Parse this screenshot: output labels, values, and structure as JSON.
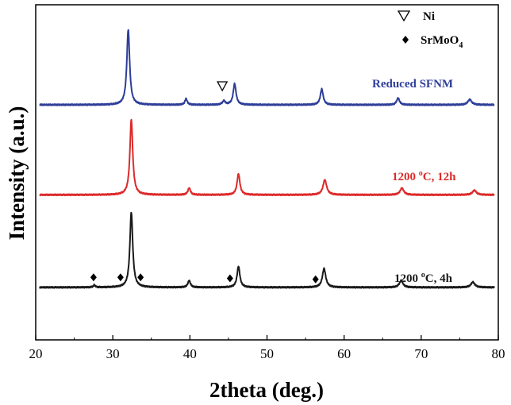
{
  "chart_data": {
    "type": "line",
    "xlabel": "2theta (deg.)",
    "ylabel": "Intensity (a.u.)",
    "xlim": [
      20,
      80
    ],
    "x_ticks": [
      "20",
      "30",
      "40",
      "50",
      "60",
      "70",
      "80"
    ],
    "y_ticks_shown": false,
    "grid": false,
    "legend": {
      "placement": "top-right",
      "items": [
        {
          "marker": "open-triangle-down",
          "label": "Ni"
        },
        {
          "marker": "filled-diamond",
          "label_main": "SrMoO",
          "label_sub": "4"
        }
      ]
    },
    "series": [
      {
        "name": "Reduced SFNM",
        "color": "#2e3e99",
        "label_parts": {
          "main": "Reduced SFNM"
        },
        "baseline": 3.7,
        "peaks": [
          {
            "x": 32.0,
            "height": 1.0,
            "width": 0.22
          },
          {
            "x": 39.5,
            "height": 0.08,
            "width": 0.18
          },
          {
            "x": 44.4,
            "height": 0.05,
            "width": 0.22
          },
          {
            "x": 45.8,
            "height": 0.28,
            "width": 0.22
          },
          {
            "x": 57.1,
            "height": 0.21,
            "width": 0.22
          },
          {
            "x": 67.0,
            "height": 0.09,
            "width": 0.22
          },
          {
            "x": 76.3,
            "height": 0.07,
            "width": 0.3
          }
        ],
        "markers": [
          {
            "type": "open-triangle-down",
            "x": 44.2,
            "y": 4.08
          }
        ]
      },
      {
        "name": "1200 °C, 12h",
        "color": "#dd2a2a",
        "label_parts": {
          "number": "1200 ",
          "sup": "o",
          "rest": "C, 12h"
        },
        "baseline": 1.9,
        "peaks": [
          {
            "x": 32.4,
            "height": 1.0,
            "width": 0.22
          },
          {
            "x": 39.9,
            "height": 0.09,
            "width": 0.2
          },
          {
            "x": 46.3,
            "height": 0.28,
            "width": 0.22
          },
          {
            "x": 57.5,
            "height": 0.2,
            "width": 0.28
          },
          {
            "x": 67.5,
            "height": 0.09,
            "width": 0.28
          },
          {
            "x": 76.9,
            "height": 0.06,
            "width": 0.3
          }
        ],
        "markers": []
      },
      {
        "name": "1200 °C, 4h",
        "color": "#1a1a1a",
        "label_parts": {
          "number": "1200 ",
          "sup": "o",
          "rest": "C, 4h"
        },
        "baseline": 0.05,
        "peaks": [
          {
            "x": 27.6,
            "height": 0.03,
            "width": 0.15
          },
          {
            "x": 32.4,
            "height": 1.0,
            "width": 0.22
          },
          {
            "x": 39.9,
            "height": 0.09,
            "width": 0.2
          },
          {
            "x": 46.3,
            "height": 0.28,
            "width": 0.22
          },
          {
            "x": 57.4,
            "height": 0.25,
            "width": 0.26
          },
          {
            "x": 67.4,
            "height": 0.09,
            "width": 0.28
          },
          {
            "x": 76.7,
            "height": 0.07,
            "width": 0.3
          }
        ],
        "markers": [
          {
            "type": "filled-diamond",
            "x": 27.5,
            "y": 0.25
          },
          {
            "type": "filled-diamond",
            "x": 31.0,
            "y": 0.25
          },
          {
            "type": "filled-diamond",
            "x": 33.6,
            "y": 0.25
          },
          {
            "type": "filled-diamond",
            "x": 45.2,
            "y": 0.23
          },
          {
            "type": "filled-diamond",
            "x": 56.3,
            "y": 0.21
          }
        ]
      }
    ],
    "ylim": [
      -1.0,
      5.7
    ]
  }
}
